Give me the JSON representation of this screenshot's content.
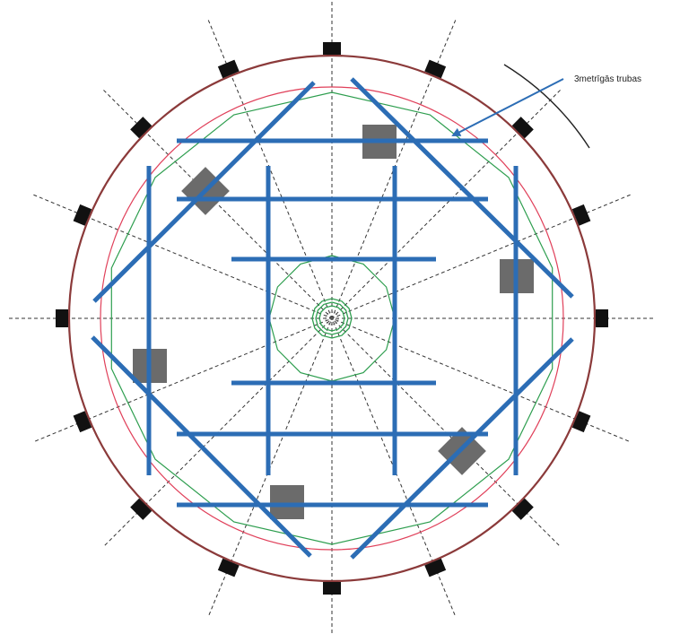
{
  "diagram": {
    "annotation": "3metrīgās trubas",
    "colors": {
      "outer_circle": "#8B3A3A",
      "red_circle": "#E0405A",
      "green_polygon": "#2E9E4F",
      "pipes": "#2C6DB5",
      "blocks": "#6B6B6B",
      "anchors": "#111111",
      "axes": "#333333",
      "arrow": "#2C6DB5"
    },
    "anchor_count": 16,
    "block_count": 6,
    "pipe_count": 14,
    "icons": [
      "anchor-square",
      "gray-block",
      "arrow"
    ]
  }
}
